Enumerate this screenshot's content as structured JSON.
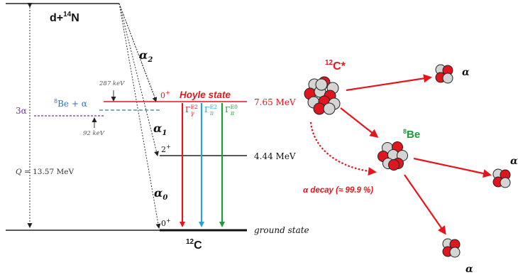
{
  "levels": {
    "initial": {
      "label_base": "d+",
      "label_sup": "14",
      "label_el": "N"
    },
    "hoyle": {
      "spin": "0",
      "parity": "+",
      "name": "Hoyle state",
      "energy": "7.65 MeV"
    },
    "first_excited": {
      "spin": "2",
      "parity": "+",
      "energy": "4.44 MeV"
    },
    "ground": {
      "spin": "0",
      "parity": "+",
      "name": "ground state"
    },
    "nucleus": {
      "sup": "12",
      "el": "C"
    }
  },
  "thresholds": {
    "three_alpha": "3α",
    "be8_alpha": {
      "sup": "8",
      "el": "Be",
      "rest": " + α"
    },
    "width_upper": "287 keV",
    "width_lower": "92 keV"
  },
  "q_value": {
    "symbol": "Q",
    "value": " = 13.57 MeV"
  },
  "transitions": {
    "alpha2": {
      "sym": "α",
      "sub": "2"
    },
    "alpha1": {
      "sym": "α",
      "sub": "1"
    },
    "alpha0": {
      "sym": "α",
      "sub": "0"
    }
  },
  "gammas": {
    "gamma_e2": {
      "sym": "Γ",
      "sup": "E2",
      "sub": "γ"
    },
    "pi_e2": {
      "sym": "Γ",
      "sup": "E2",
      "sub": "π"
    },
    "pi_e0": {
      "sym": "Γ",
      "sup": "E0",
      "sub": "π"
    }
  },
  "decay_panel": {
    "c12_star": {
      "sup": "12",
      "el": "C*"
    },
    "be8": {
      "sup": "8",
      "el": "Be"
    },
    "alpha_label": "α",
    "decay_note": "α decay (≈ 99.9 %)"
  },
  "colors": {
    "red": "#e8141c",
    "blue": "#2b9fd9",
    "green": "#1f9a3a",
    "purple": "#7b2fa8",
    "be_blue": "#2f6fcb",
    "teal_dash": "#3a7a8c",
    "gray": "#555555",
    "proton": "#e0161e",
    "neutron": "#d4d4d4"
  }
}
